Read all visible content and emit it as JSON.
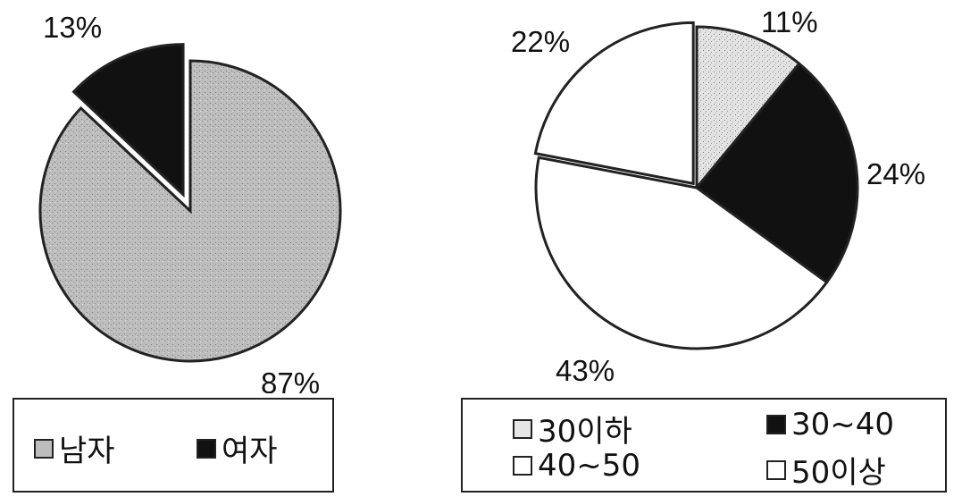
{
  "chart_data": [
    {
      "type": "pie",
      "slices": [
        {
          "label": "남자",
          "value": 87,
          "value_label": "87%",
          "color": "#b9b9b9",
          "exploded": false
        },
        {
          "label": "여자",
          "value": 13,
          "value_label": "13%",
          "color": "#111111",
          "exploded": true
        }
      ],
      "legend": [
        "남자",
        "여자"
      ],
      "legend_position": "bottom"
    },
    {
      "type": "pie",
      "slices": [
        {
          "label": "30이하",
          "value": 11,
          "value_label": "11%",
          "color": "#d9d9d9",
          "exploded": false
        },
        {
          "label": "30~40",
          "value": 24,
          "value_label": "24%",
          "color": "#111111",
          "exploded": false
        },
        {
          "label": "40~50",
          "value": 43,
          "value_label": "43%",
          "color": "#ffffff",
          "exploded": false
        },
        {
          "label": "50이상",
          "value": 22,
          "value_label": "22%",
          "color": "#ffffff",
          "exploded": true
        }
      ],
      "legend": [
        "30이하",
        "30~40",
        "40~50",
        "50이상"
      ],
      "legend_position": "bottom"
    }
  ]
}
